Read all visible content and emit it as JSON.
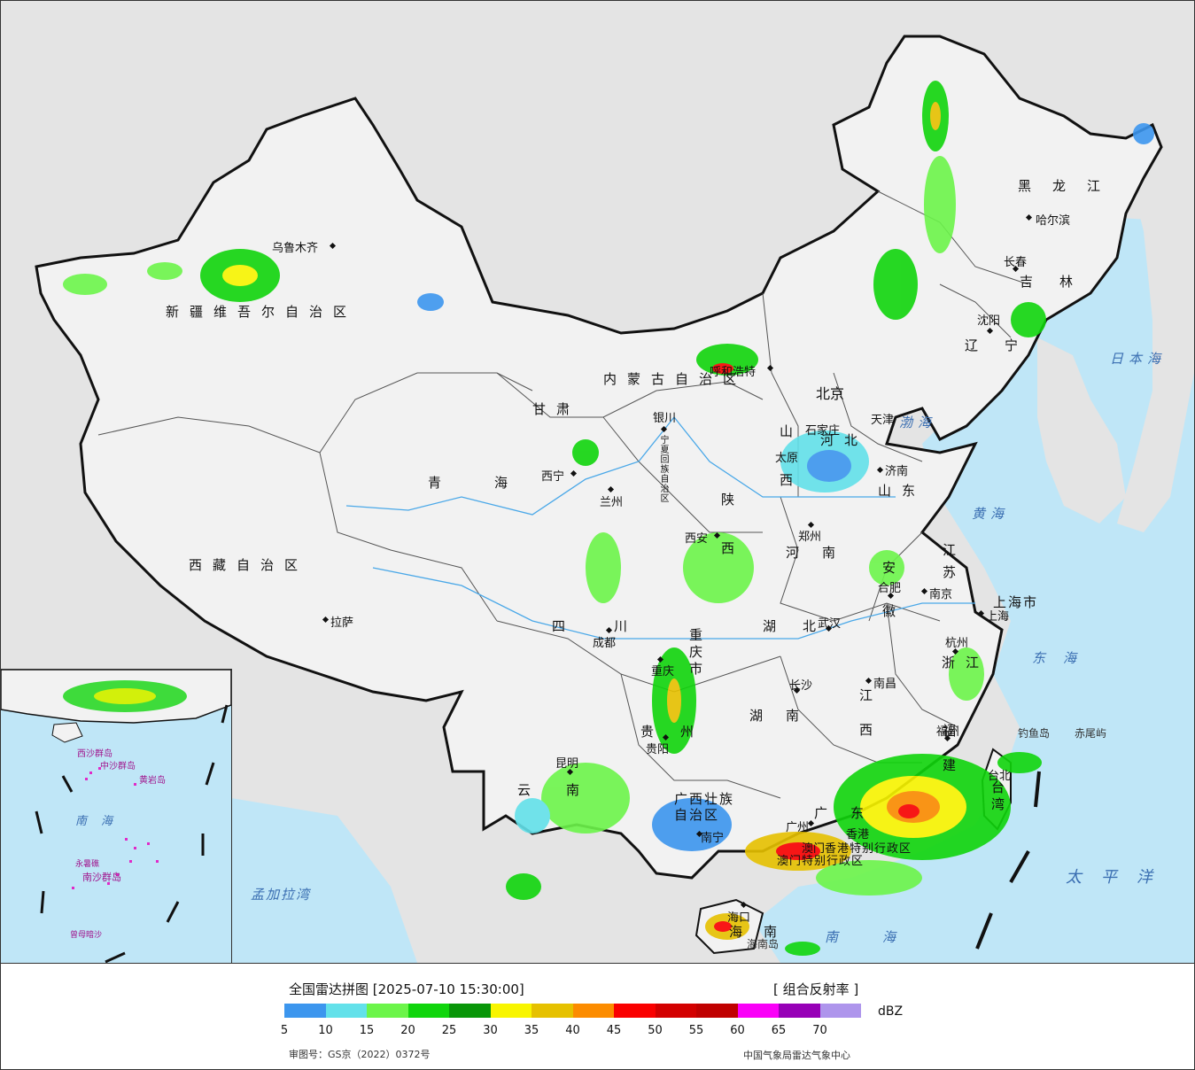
{
  "legend": {
    "title": "全国雷达拼图 [2025-07-10 15:30:00]",
    "product": "[ 组合反射率 ]",
    "unit": "dBZ",
    "review_number": "审图号：GS京（2022）0372号",
    "credit": "中国气象局雷达气象中心",
    "ticks": [
      "5",
      "10",
      "15",
      "20",
      "25",
      "30",
      "35",
      "40",
      "45",
      "50",
      "55",
      "60",
      "65",
      "70"
    ],
    "colors": [
      "#3c96ee",
      "#63e1ea",
      "#6cf54a",
      "#10d50c",
      "#089608",
      "#f8f500",
      "#e6c100",
      "#fc8c00",
      "#fa0000",
      "#d30000",
      "#c00000",
      "#fa00f8",
      "#9700b7",
      "#ae95ec"
    ]
  },
  "provinces": [
    {
      "name": "新疆维吾尔自治区"
    },
    {
      "name": "西藏自治区"
    },
    {
      "name": "青海"
    },
    {
      "name": "甘肃"
    },
    {
      "name": "内蒙古自治区"
    },
    {
      "name": "黑龙江"
    },
    {
      "name": "吉林"
    },
    {
      "name": "辽宁"
    },
    {
      "name": "河北"
    },
    {
      "name": "山西"
    },
    {
      "name": "山东"
    },
    {
      "name": "河南"
    },
    {
      "name": "陕西"
    },
    {
      "name": "宁夏回族自治区"
    },
    {
      "name": "四川"
    },
    {
      "name": "重庆市"
    },
    {
      "name": "湖北"
    },
    {
      "name": "安徽"
    },
    {
      "name": "江苏"
    },
    {
      "name": "上海市"
    },
    {
      "name": "浙江"
    },
    {
      "name": "江西"
    },
    {
      "name": "湖南"
    },
    {
      "name": "贵州"
    },
    {
      "name": "云南"
    },
    {
      "name": "广西壮族自治区"
    },
    {
      "name": "广东"
    },
    {
      "name": "福建"
    },
    {
      "name": "台湾"
    },
    {
      "name": "海南"
    },
    {
      "name": "香港特别行政区"
    },
    {
      "name": "澳门特别行政区"
    }
  ],
  "cities": [
    {
      "name": "乌鲁木齐"
    },
    {
      "name": "拉萨"
    },
    {
      "name": "西宁"
    },
    {
      "name": "兰州"
    },
    {
      "name": "银川"
    },
    {
      "name": "呼和浩特"
    },
    {
      "name": "哈尔滨"
    },
    {
      "name": "长春"
    },
    {
      "name": "沈阳"
    },
    {
      "name": "北京"
    },
    {
      "name": "天津"
    },
    {
      "name": "石家庄"
    },
    {
      "name": "太原"
    },
    {
      "name": "济南"
    },
    {
      "name": "郑州"
    },
    {
      "name": "西安"
    },
    {
      "name": "成都"
    },
    {
      "name": "重庆"
    },
    {
      "name": "武汉"
    },
    {
      "name": "合肥"
    },
    {
      "name": "南京"
    },
    {
      "name": "上海"
    },
    {
      "name": "杭州"
    },
    {
      "name": "南昌"
    },
    {
      "name": "长沙"
    },
    {
      "name": "贵阳"
    },
    {
      "name": "昆明"
    },
    {
      "name": "南宁"
    },
    {
      "name": "广州"
    },
    {
      "name": "福州"
    },
    {
      "name": "台北"
    },
    {
      "name": "海口"
    },
    {
      "name": "香港"
    },
    {
      "name": "澳门"
    }
  ],
  "seas": [
    {
      "name": "渤海"
    },
    {
      "name": "黄海"
    },
    {
      "name": "东海"
    },
    {
      "name": "南海"
    },
    {
      "name": "日本海"
    },
    {
      "name": "太平洋"
    },
    {
      "name": "孟加拉湾"
    }
  ],
  "islands": [
    {
      "name": "钓鱼岛"
    },
    {
      "name": "赤尾屿"
    },
    {
      "name": "海南岛"
    }
  ],
  "inset": {
    "labels": [
      {
        "name": "南海"
      },
      {
        "name": "中沙群岛"
      },
      {
        "name": "黄岩岛"
      },
      {
        "name": "西沙群岛"
      },
      {
        "name": "南沙群岛"
      },
      {
        "name": "永暑礁"
      },
      {
        "name": "曾母暗沙"
      }
    ]
  },
  "colors": {
    "ocean": "#bfe6f7",
    "land_china": "#f2f2f2",
    "land_other": "#e4e4e4",
    "border": "#111111",
    "river": "#4aa8e8"
  }
}
